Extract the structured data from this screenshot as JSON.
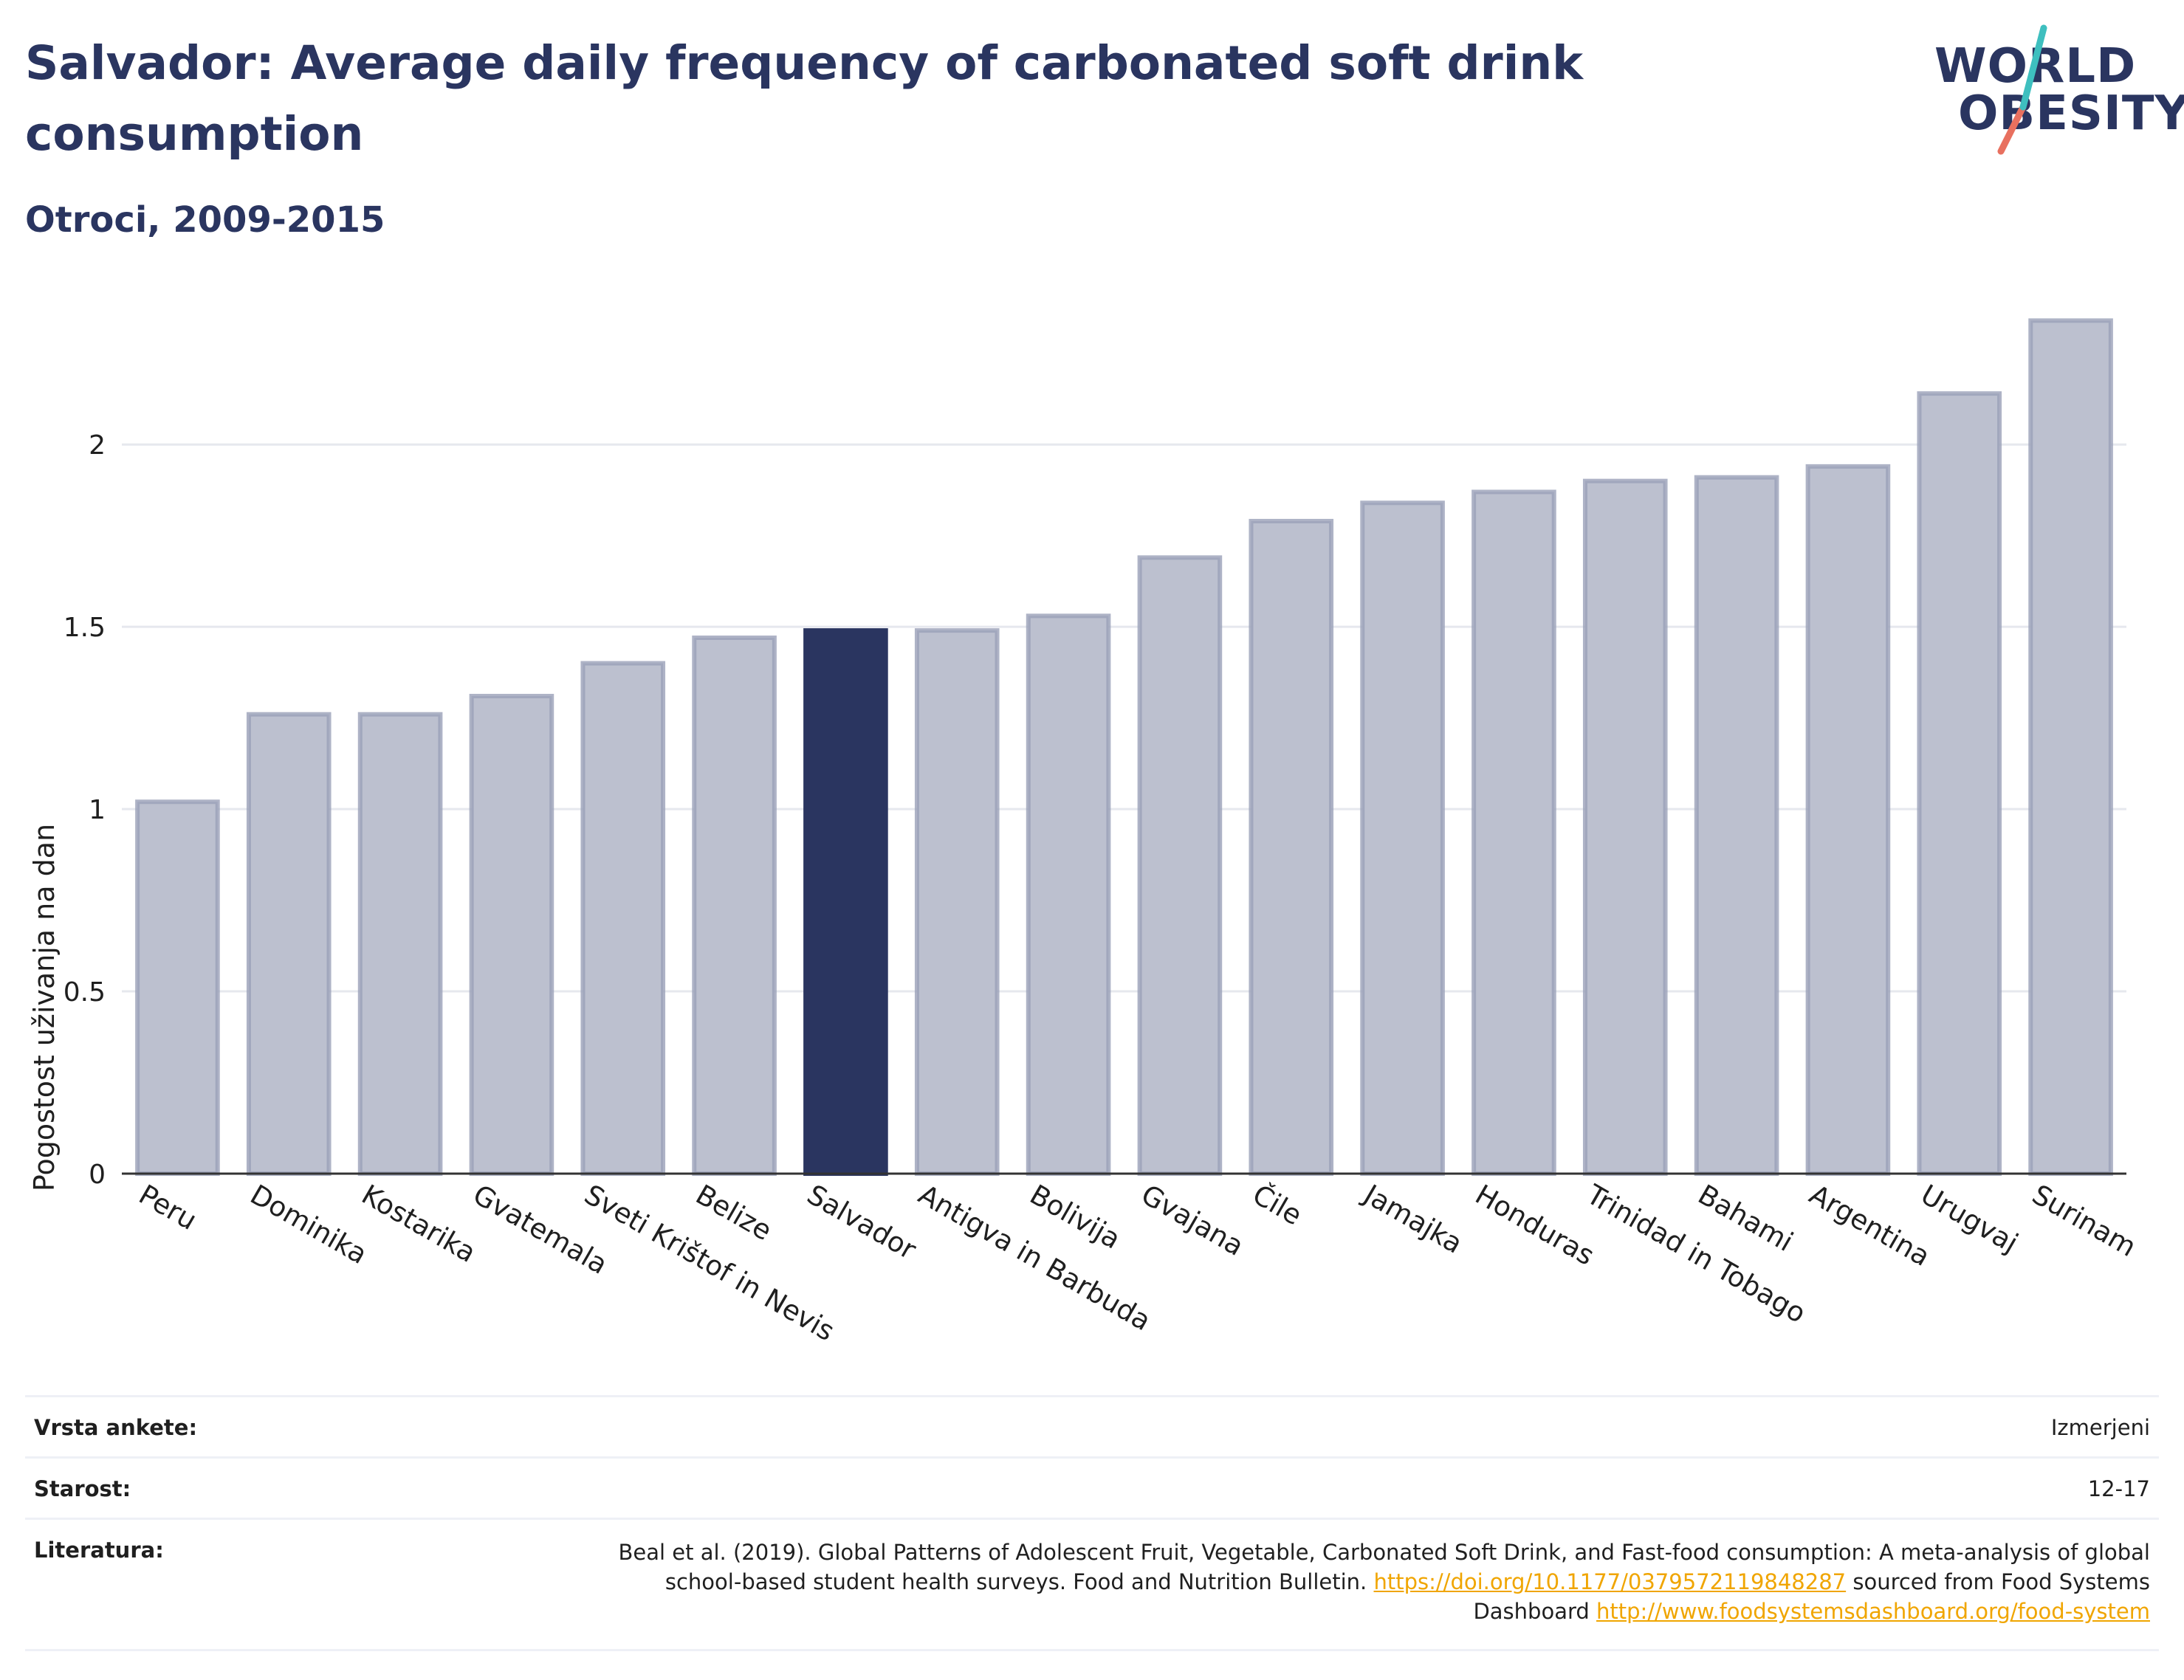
{
  "title": "Salvador: Average daily frequency of carbonated soft drink consumption",
  "subtitle": "Otroci, 2009-2015",
  "logo": {
    "line1": "WORLD",
    "line2": "OBESITY",
    "accent_colors": [
      "#3ebfbf",
      "#e8705f"
    ]
  },
  "colors": {
    "highlight": "#2a3560",
    "bar": "#bcc0cf",
    "bar_border": "#9aa0b8",
    "grid": "#e6e8ee",
    "axis": "#333333"
  },
  "chart_data": {
    "type": "bar",
    "title": "Salvador: Average daily frequency of carbonated soft drink consumption",
    "subtitle": "Otroci, 2009-2015",
    "xlabel": "",
    "ylabel": "Pogostost uživanja na dan",
    "ylim": [
      0,
      2.45
    ],
    "yticks": [
      0,
      0.5,
      1,
      1.5,
      2
    ],
    "ytick_labels": [
      "0",
      "0.5",
      "1",
      "1.5",
      "2"
    ],
    "grid": true,
    "highlight": "Salvador",
    "categories": [
      "Peru",
      "Dominika",
      "Kostarika",
      "Gvatemala",
      "Sveti Krištof in Nevis",
      "Belize",
      "Salvador",
      "Antigva in Barbuda",
      "Bolivija",
      "Gvajana",
      "Čile",
      "Jamajka",
      "Honduras",
      "Trinidad in Tobago",
      "Bahami",
      "Argentina",
      "Urugvaj",
      "Surinam"
    ],
    "values": [
      1.02,
      1.26,
      1.26,
      1.31,
      1.4,
      1.47,
      1.49,
      1.49,
      1.53,
      1.69,
      1.79,
      1.84,
      1.87,
      1.9,
      1.91,
      1.94,
      2.14,
      2.34
    ]
  },
  "info": {
    "survey_label": "Vrsta ankete:",
    "survey_value": "Izmerjeni",
    "age_label": "Starost:",
    "age_value": "12-17",
    "ref_label": "Literatura:",
    "ref_text1": "Beal et al. (2019). Global Patterns of Adolescent Fruit, Vegetable, Carbonated Soft Drink, and Fast-food consumption: A meta-analysis of global school-based student health surveys. Food and Nutrition Bulletin.",
    "ref_link1": "https://doi.org/10.1177/0379572119848287",
    "ref_text2": "sourced from Food Systems Dashboard",
    "ref_link2": "http://www.foodsystemsdashboard.org/food-system"
  }
}
